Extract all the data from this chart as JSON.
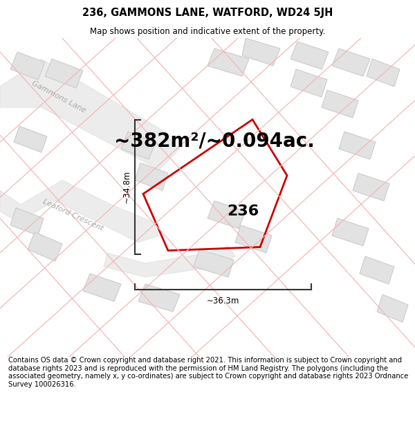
{
  "title": "236, GAMMONS LANE, WATFORD, WD24 5JH",
  "subtitle": "Map shows position and indicative extent of the property.",
  "area_text": "~382m²/~0.094ac.",
  "label_236": "236",
  "dim_vertical": "~34.8m",
  "dim_horizontal": "~36.3m",
  "footer": "Contains OS data © Crown copyright and database right 2021. This information is subject to Crown copyright and database rights 2023 and is reproduced with the permission of HM Land Registry. The polygons (including the associated geometry, namely x, y co-ordinates) are subject to Crown copyright and database rights 2023 Ordnance Survey 100026316.",
  "map_bg": "#f7f7f7",
  "building_fill": "#e2e2e2",
  "building_edge": "#cccccc",
  "road_fill": "#eeeeee",
  "road_edge": "#dddddd",
  "property_edge": "#cc0000",
  "light_red": "#f2b8b8",
  "dim_color": "#333333",
  "road_label_color": "#aaaaaa",
  "title_fontsize": 10.5,
  "subtitle_fontsize": 8.5,
  "area_fontsize": 20,
  "label_fontsize": 16,
  "footer_fontsize": 7.2,
  "dim_fontsize": 8.5
}
